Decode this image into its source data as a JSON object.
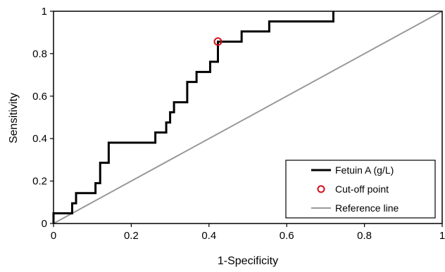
{
  "chart_data": {
    "type": "line",
    "title": "",
    "xlabel": "1-Specificity",
    "ylabel": "Sensitivity",
    "xlim": [
      0,
      1
    ],
    "ylim": [
      0,
      1
    ],
    "x_ticks": [
      0,
      0.2,
      0.4,
      0.6,
      0.8,
      1
    ],
    "x_tick_labels": [
      "0",
      "0.2",
      "0.4",
      "0.6",
      "0.8",
      "1"
    ],
    "y_ticks": [
      0,
      0.2,
      0.4,
      0.6,
      0.8,
      1
    ],
    "y_tick_labels": [
      "0",
      "0.2",
      "0.4",
      "0.6",
      "0.8",
      "1"
    ],
    "grid": false,
    "legend_position": "bottom-right",
    "series": [
      {
        "name": "Fetuin A (g/L)",
        "kind": "step-line",
        "color": "#000000",
        "x": [
          0,
          0,
          0.048,
          0.048,
          0.058,
          0.058,
          0.108,
          0.108,
          0.12,
          0.12,
          0.142,
          0.142,
          0.262,
          0.262,
          0.29,
          0.29,
          0.3,
          0.3,
          0.31,
          0.31,
          0.344,
          0.344,
          0.368,
          0.368,
          0.403,
          0.403,
          0.423,
          0.423,
          0.438,
          0.438,
          0.484,
          0.484,
          0.555,
          0.555,
          0.72,
          0.72
        ],
        "y": [
          0,
          0.048,
          0.048,
          0.095,
          0.095,
          0.143,
          0.143,
          0.19,
          0.19,
          0.286,
          0.286,
          0.381,
          0.381,
          0.429,
          0.429,
          0.476,
          0.476,
          0.524,
          0.524,
          0.571,
          0.571,
          0.667,
          0.667,
          0.714,
          0.714,
          0.762,
          0.762,
          0.857,
          0.857,
          0.857,
          0.857,
          0.905,
          0.905,
          0.952,
          0.952,
          1.0
        ]
      },
      {
        "name": "Cut-off point",
        "kind": "marker",
        "color": "#d0101a",
        "x": [
          0.423
        ],
        "y": [
          0.857
        ]
      },
      {
        "name": "Reference line",
        "kind": "line",
        "color": "#999999",
        "x": [
          0,
          1
        ],
        "y": [
          0,
          1
        ]
      }
    ]
  }
}
